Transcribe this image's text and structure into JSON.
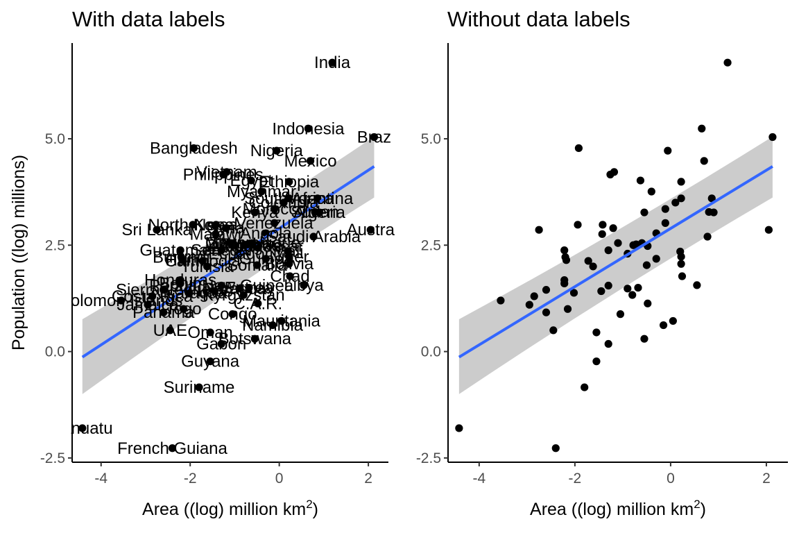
{
  "chart_data": [
    {
      "type": "scatter",
      "title": "With data labels",
      "xlabel": "Area ((log) million km",
      "xlabel_superscript": "2",
      "ylabel": "Population ((log) millions)",
      "xlim": [
        -4.65,
        2.45
      ],
      "ylim": [
        -2.6,
        7.25
      ],
      "xticks": [
        {
          "v": -4,
          "label": "-4"
        },
        {
          "v": -2,
          "label": "-2"
        },
        {
          "v": 0,
          "label": "0"
        },
        {
          "v": 2,
          "label": "2"
        }
      ],
      "yticks": [
        {
          "v": -2.5,
          "label": "-2.5"
        },
        {
          "v": 0,
          "label": "0.0"
        },
        {
          "v": 2.5,
          "label": "2.5"
        },
        {
          "v": 5,
          "label": "5.0"
        }
      ],
      "labels_shown": true,
      "grid": false,
      "legend": "none",
      "fit": {
        "method": "lm",
        "x": [
          -4.42,
          2.13
        ],
        "y": [
          -0.13,
          4.35
        ],
        "ci_lower": [
          -1.0,
          3.62
        ],
        "ci_upper": [
          0.76,
          5.05
        ]
      },
      "points": [
        {
          "x": 1.19,
          "y": 6.79,
          "label": "India"
        },
        {
          "x": 0.65,
          "y": 5.24,
          "label": "Indonesia"
        },
        {
          "x": 2.13,
          "y": 5.04,
          "label": "Braz"
        },
        {
          "x": -1.92,
          "y": 4.78,
          "label": "Bangladesh"
        },
        {
          "x": -0.06,
          "y": 4.72,
          "label": "Nigeria"
        },
        {
          "x": 0.7,
          "y": 4.48,
          "label": "Mexico"
        },
        {
          "x": -1.18,
          "y": 4.22,
          "label": "Vietnam"
        },
        {
          "x": -1.26,
          "y": 4.16,
          "label": "Philippines"
        },
        {
          "x": -0.63,
          "y": 4.02,
          "label": "Egypt"
        },
        {
          "x": 0.22,
          "y": 3.99,
          "label": "Ethiopia"
        },
        {
          "x": -0.4,
          "y": 3.76,
          "label": "Myanmar"
        },
        {
          "x": 0.22,
          "y": 3.6,
          "label": "South Africa"
        },
        {
          "x": 0.1,
          "y": 3.5,
          "label": "Colombia"
        },
        {
          "x": 0.86,
          "y": 3.6,
          "label": "Argentina"
        },
        {
          "x": -0.55,
          "y": 3.27,
          "label": "Kenya"
        },
        {
          "x": 0.9,
          "y": 3.27,
          "label": "Algeria"
        },
        {
          "x": 0.8,
          "y": 3.28,
          "label": "Sudan"
        },
        {
          "x": -0.11,
          "y": 3.35,
          "label": "Morocco"
        },
        {
          "x": 2.05,
          "y": 2.86,
          "label": "Austra"
        },
        {
          "x": -2.75,
          "y": 2.86,
          "label": "Sri Lanka"
        },
        {
          "x": 0.77,
          "y": 2.7,
          "label": "Saudi Arabia"
        },
        {
          "x": -1.42,
          "y": 2.98,
          "label": "Nepal"
        },
        {
          "x": -1.94,
          "y": 2.98,
          "label": "North Korea"
        },
        {
          "x": -0.11,
          "y": 3.02,
          "label": "Venezuela"
        },
        {
          "x": -1.43,
          "y": 2.76,
          "label": "Malawi"
        },
        {
          "x": -1.2,
          "y": 2.9,
          "label": "Syria"
        },
        {
          "x": -0.3,
          "y": 2.78,
          "label": "Angola"
        },
        {
          "x": -0.6,
          "y": 2.55,
          "label": "Mozambique"
        },
        {
          "x": -1.1,
          "y": 2.55,
          "label": "Ghana"
        },
        {
          "x": -2.22,
          "y": 2.38,
          "label": "Guatemala"
        },
        {
          "x": -0.72,
          "y": 2.52,
          "label": "Zambia"
        },
        {
          "x": -0.48,
          "y": 2.48,
          "label": "Madagascar"
        },
        {
          "x": 0.2,
          "y": 2.35,
          "label": "Mali"
        },
        {
          "x": 0.22,
          "y": 2.23,
          "label": "Niger"
        },
        {
          "x": -1.72,
          "y": 2.13,
          "label": "Cambodia"
        },
        {
          "x": -2.2,
          "y": 2.22,
          "label": "Burundi"
        },
        {
          "x": -1.3,
          "y": 2.38,
          "label": "Senegal"
        },
        {
          "x": -2.18,
          "y": 2.15,
          "label": "Haiti"
        },
        {
          "x": -0.9,
          "y": 2.3,
          "label": "Ecuador"
        },
        {
          "x": -1.62,
          "y": 2.0,
          "label": "Tunisia"
        },
        {
          "x": -0.78,
          "y": 2.5,
          "label": "Zimbabwe"
        },
        {
          "x": 0.22,
          "y": 2.06,
          "label": "Bolivia"
        },
        {
          "x": -0.5,
          "y": 2.03,
          "label": "Somalia"
        },
        {
          "x": -0.3,
          "y": 2.18,
          "label": "Guinea"
        },
        {
          "x": 0.24,
          "y": 1.77,
          "label": "Chad"
        },
        {
          "x": -2.22,
          "y": 1.68,
          "label": "Honduras"
        },
        {
          "x": -2.22,
          "y": 1.6,
          "label": "Benin"
        },
        {
          "x": -1.3,
          "y": 1.55,
          "label": "Papua New Guinea"
        },
        {
          "x": 0.55,
          "y": 1.56,
          "label": "Libya"
        },
        {
          "x": -0.9,
          "y": 1.48,
          "label": "Paraguay"
        },
        {
          "x": -1.45,
          "y": 1.42,
          "label": "Laos"
        },
        {
          "x": -2.6,
          "y": 1.45,
          "label": "Sierra Leone"
        },
        {
          "x": -0.8,
          "y": 1.33,
          "label": "Kyrgyzstan"
        },
        {
          "x": -2.15,
          "y": 1.0,
          "label": "Togo"
        },
        {
          "x": -2.02,
          "y": 1.38,
          "label": "Nicaragua"
        },
        {
          "x": -0.48,
          "y": 1.13,
          "label": "C.A.R."
        },
        {
          "x": -0.68,
          "y": 1.5,
          "label": "Eritrea"
        },
        {
          "x": -2.85,
          "y": 1.3,
          "label": "Costa Rica"
        },
        {
          "x": -3.55,
          "y": 1.2,
          "label": "Solomon Islands"
        },
        {
          "x": -2.95,
          "y": 1.1,
          "label": "Jamaica"
        },
        {
          "x": -2.6,
          "y": 0.92,
          "label": "Panama"
        },
        {
          "x": -1.05,
          "y": 0.88,
          "label": "Congo"
        },
        {
          "x": -2.45,
          "y": 0.5,
          "label": "UAE"
        },
        {
          "x": -1.55,
          "y": 0.45,
          "label": "Oman"
        },
        {
          "x": 0.05,
          "y": 0.72,
          "label": "Mauritania"
        },
        {
          "x": -0.15,
          "y": 0.62,
          "label": "Namibia"
        },
        {
          "x": -0.55,
          "y": 0.3,
          "label": "Botswana"
        },
        {
          "x": -1.3,
          "y": 0.18,
          "label": "Gabon"
        },
        {
          "x": -1.55,
          "y": -0.23,
          "label": "Guyana"
        },
        {
          "x": -1.8,
          "y": -0.84,
          "label": "Suriname"
        },
        {
          "x": -4.42,
          "y": -1.8,
          "label": "Vanuatu"
        },
        {
          "x": -2.4,
          "y": -2.27,
          "label": "French Guiana"
        }
      ]
    },
    {
      "type": "scatter",
      "title": "Without data labels",
      "xlabel": "Area ((log) million km",
      "xlabel_superscript": "2",
      "ylabel": "",
      "xlim": [
        -4.65,
        2.45
      ],
      "ylim": [
        -2.6,
        7.25
      ],
      "xticks": [
        {
          "v": -4,
          "label": "-4"
        },
        {
          "v": -2,
          "label": "-2"
        },
        {
          "v": 0,
          "label": "0"
        },
        {
          "v": 2,
          "label": "2"
        }
      ],
      "yticks": [
        {
          "v": -2.5,
          "label": "-2.5"
        },
        {
          "v": 0,
          "label": "0.0"
        },
        {
          "v": 2.5,
          "label": "2.5"
        },
        {
          "v": 5,
          "label": "5.0"
        }
      ],
      "labels_shown": false,
      "grid": false,
      "legend": "none",
      "same_points_as": 0,
      "fit": {
        "method": "lm",
        "x": [
          -4.42,
          2.13
        ],
        "y": [
          -0.13,
          4.35
        ],
        "ci_lower": [
          -1.0,
          3.62
        ],
        "ci_upper": [
          0.76,
          5.05
        ]
      }
    }
  ],
  "colors": {
    "point": "#000000",
    "fit_line": "#3366FF",
    "ci_band": "#CCCCCC",
    "axis": "#000000",
    "tick_label": "#4D4D4D"
  }
}
